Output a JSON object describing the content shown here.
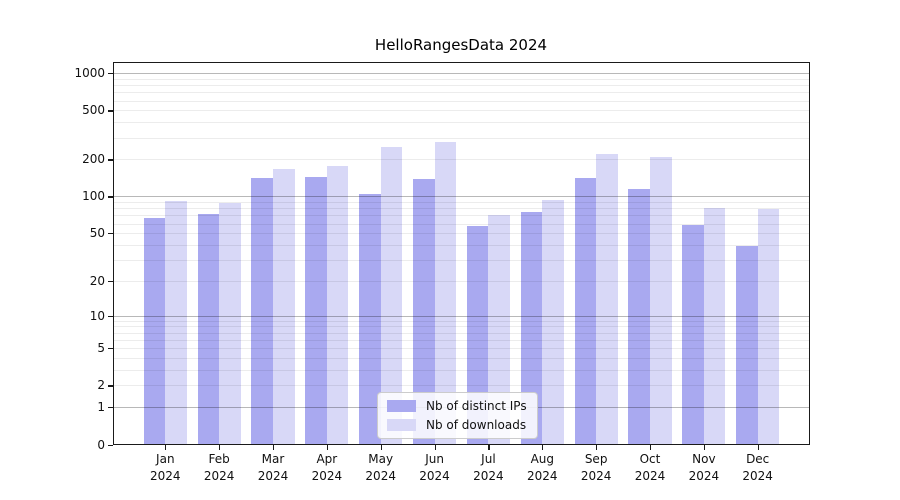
{
  "title": "HelloRangesData 2024",
  "chart_data": {
    "type": "bar",
    "title": "HelloRangesData 2024",
    "categories": [
      "Jan",
      "Feb",
      "Mar",
      "Apr",
      "May",
      "Jun",
      "Jul",
      "Aug",
      "Sep",
      "Oct",
      "Nov",
      "Dec"
    ],
    "category_year": "2024",
    "series": [
      {
        "name": "Nb of distinct IPs",
        "color": "#a9a9f0",
        "values": [
          67,
          72,
          140,
          143,
          104,
          138,
          57,
          74,
          141,
          114,
          58,
          39
        ]
      },
      {
        "name": "Nb of downloads",
        "color": "#d8d8f7",
        "values": [
          91,
          88,
          167,
          177,
          254,
          276,
          70,
          94,
          220,
          208,
          80,
          79
        ]
      }
    ],
    "yaxis": {
      "scale": "log1p",
      "ticks": [
        0,
        1,
        2,
        5,
        10,
        20,
        50,
        100,
        200,
        500,
        1000
      ],
      "major_grid": [
        1,
        10,
        100,
        1000
      ],
      "minor_grid": [
        2,
        3,
        4,
        5,
        6,
        7,
        8,
        9,
        20,
        30,
        40,
        50,
        60,
        70,
        80,
        90,
        200,
        300,
        400,
        500,
        600,
        700,
        800,
        900
      ],
      "max": 1230
    },
    "xlabel": "",
    "ylabel": "",
    "grid": "on",
    "legend_position": "lower center"
  },
  "colors": {
    "series1": "#a9a9f0",
    "series2": "#d8d8f7",
    "spine": "#1a1a1a",
    "legend_border": "#cccccc"
  }
}
